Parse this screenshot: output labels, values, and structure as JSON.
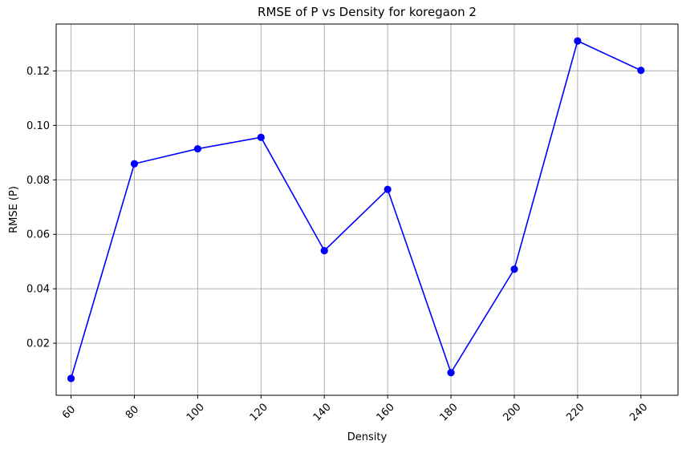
{
  "chart_data": {
    "type": "line",
    "title": "RMSE of P vs Density for koregaon 2",
    "xlabel": "Density",
    "ylabel": "RMSE (P)",
    "x": [
      60,
      80,
      100,
      120,
      140,
      160,
      180,
      200,
      220,
      240
    ],
    "y": [
      0.0071,
      0.0859,
      0.0914,
      0.0956,
      0.054,
      0.0765,
      0.0092,
      0.0472,
      0.131,
      0.1202
    ],
    "x_ticks": [
      60,
      80,
      100,
      120,
      140,
      160,
      180,
      200,
      220,
      240
    ],
    "x_tick_labels": [
      "60",
      "80",
      "100",
      "120",
      "140",
      "160",
      "180",
      "200",
      "220",
      "240"
    ],
    "y_ticks": [
      0.02,
      0.04,
      0.06,
      0.08,
      0.1,
      0.12
    ],
    "y_tick_labels": [
      "0.02",
      "0.04",
      "0.06",
      "0.08",
      "0.10",
      "0.12"
    ],
    "xlim": [
      55.3,
      251.7
    ],
    "ylim": [
      0.0009,
      0.1372
    ],
    "grid": true,
    "line_color": "#0000ff",
    "marker": "circle"
  }
}
